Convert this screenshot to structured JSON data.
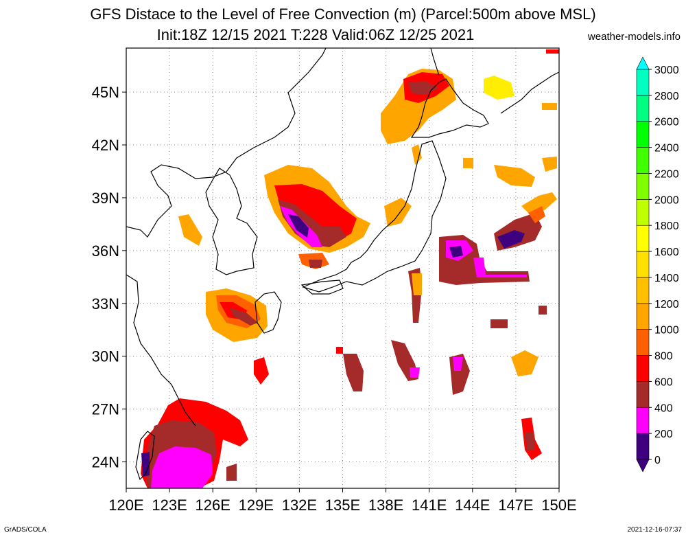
{
  "header": {
    "title_line1": "GFS Distace to the Level of Free Convection (m) (Parcel:500m above MSL)",
    "title_line2": "Init:18Z 12/15 2021 T:228 Valid:06Z 12/25 2021",
    "site": "weather-models.info"
  },
  "map": {
    "lon_range": [
      120,
      150
    ],
    "lat_range": [
      22.5,
      47.5
    ],
    "lon_ticks": [
      "120E",
      "123E",
      "126E",
      "129E",
      "132E",
      "135E",
      "138E",
      "141E",
      "144E",
      "147E",
      "150E"
    ],
    "lat_ticks": [
      "24N",
      "27N",
      "30N",
      "33N",
      "36N",
      "39N",
      "42N",
      "45N"
    ],
    "grid": true
  },
  "colorbar": {
    "labels": [
      "0",
      "200",
      "400",
      "600",
      "800",
      "1000",
      "1200",
      "1400",
      "1600",
      "1800",
      "2000",
      "2200",
      "2400",
      "2600",
      "2800",
      "3000"
    ],
    "colors": [
      "#3f007f",
      "#ff00ff",
      "#a52a2a",
      "#ff0000",
      "#ff6000",
      "#ffa500",
      "#ffc000",
      "#ffe000",
      "#ffff00",
      "#c0ff00",
      "#80ff00",
      "#40ff00",
      "#00ff00",
      "#00ff80",
      "#00ffc0",
      "#00ffff"
    ]
  },
  "footer": {
    "credit": "GrADS/COLA",
    "timestamp": "2021-12-16-07:37"
  },
  "legend_colors": {
    "purple": "#3f007f",
    "magenta": "#ff00ff",
    "brown": "#a52a2a",
    "red": "#ff0000",
    "darkorange": "#ff8c00",
    "orange": "#ffa500",
    "gold": "#ffc000",
    "yellow": "#ffee00"
  }
}
